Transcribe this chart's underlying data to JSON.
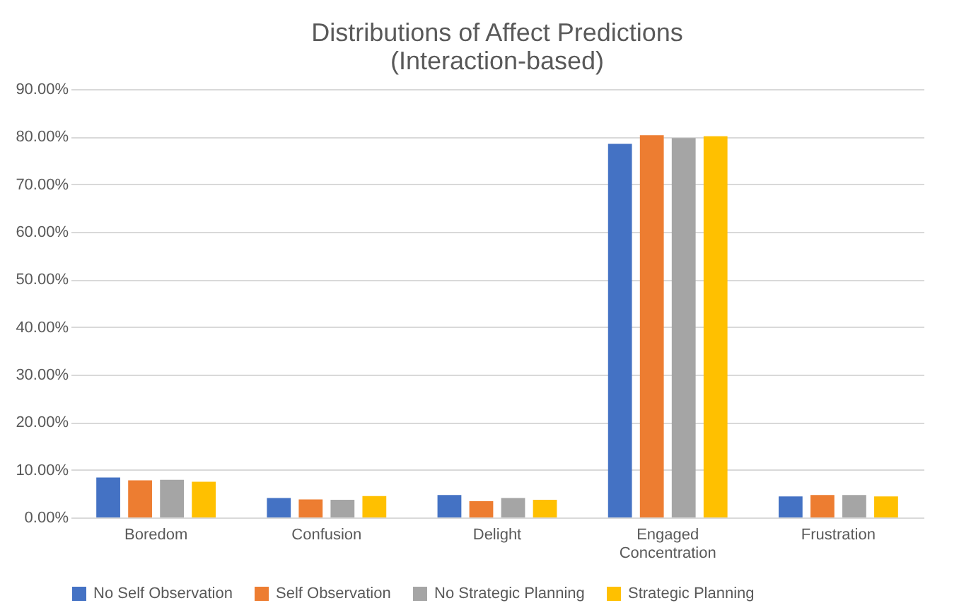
{
  "chart_data": {
    "type": "bar",
    "title": [
      "Distributions of Affect Predictions",
      "(Interaction-based)"
    ],
    "categories": [
      "Boredom",
      "Confusion",
      "Delight",
      "Engaged Concentration",
      "Frustration"
    ],
    "series": [
      {
        "name": "No Self Observation",
        "color": "#4472c4",
        "values": [
          8.4,
          4.1,
          4.7,
          78.5,
          4.4
        ]
      },
      {
        "name": "Self Observation",
        "color": "#ed7d31",
        "values": [
          7.8,
          3.8,
          3.4,
          80.3,
          4.7
        ]
      },
      {
        "name": "No Strategic Planning",
        "color": "#a5a5a5",
        "values": [
          7.9,
          3.7,
          4.1,
          79.7,
          4.7
        ]
      },
      {
        "name": "Strategic Planning",
        "color": "#ffc000",
        "values": [
          7.5,
          4.5,
          3.7,
          80.1,
          4.4
        ]
      }
    ],
    "ylim": [
      0,
      90
    ],
    "yticks": [
      {
        "value": 0,
        "label": "0.00%"
      },
      {
        "value": 10,
        "label": "10.00%"
      },
      {
        "value": 20,
        "label": "20.00%"
      },
      {
        "value": 30,
        "label": "30.00%"
      },
      {
        "value": 40,
        "label": "40.00%"
      },
      {
        "value": 50,
        "label": "50.00%"
      },
      {
        "value": 60,
        "label": "60.00%"
      },
      {
        "value": 70,
        "label": "70.00%"
      },
      {
        "value": 80,
        "label": "80.00%"
      },
      {
        "value": 90,
        "label": "90.00%"
      }
    ],
    "grid": "y",
    "legend": "bottom"
  }
}
